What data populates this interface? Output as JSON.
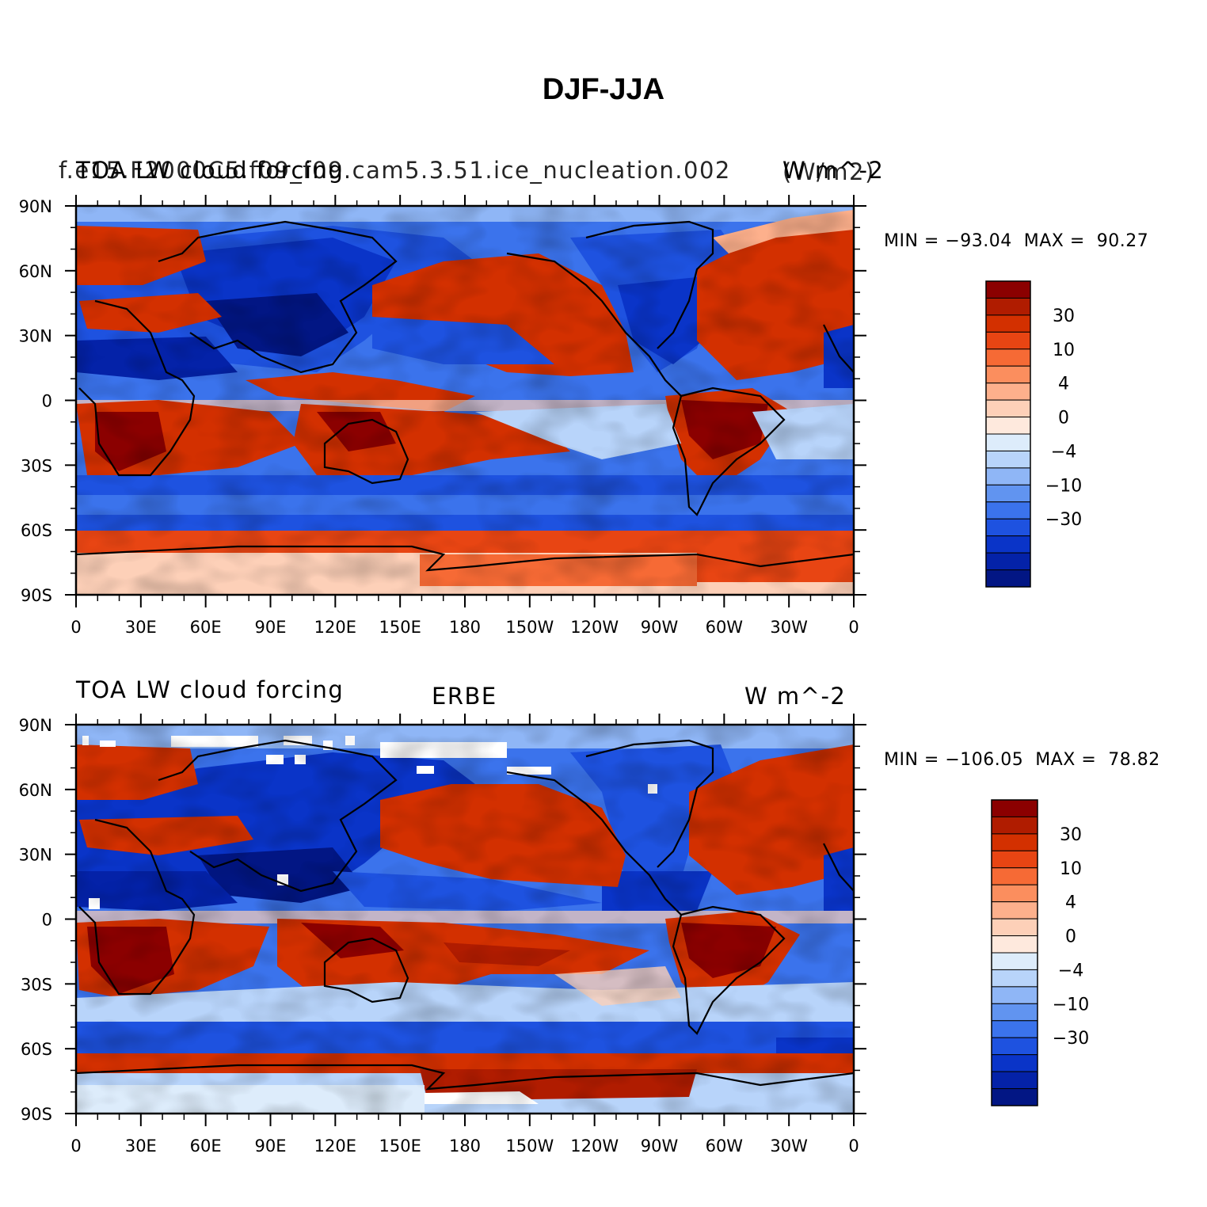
{
  "title": "DJF-JJA",
  "panels": [
    {
      "left_text": "TOA LW cloud forcing",
      "left_text_overlap": "f.e15.F2000C5.f09_f09.cam5.3.51.ice_nucleation.002",
      "center_text": "",
      "right_text": "W m^-2",
      "right_text_overlap": "(W/m2)",
      "min_max": "MIN = −93.04  MAX =  90.27"
    },
    {
      "left_text": "TOA LW cloud forcing",
      "left_text_overlap": "",
      "center_text": "ERBE",
      "right_text": "W m^-2",
      "right_text_overlap": "",
      "min_max": "MIN = −106.05  MAX =  78.82"
    }
  ],
  "axes": {
    "lat_labels": [
      "90N",
      "60N",
      "30N",
      "0",
      "30S",
      "60S",
      "90S"
    ],
    "lon_labels": [
      "0",
      "30E",
      "60E",
      "90E",
      "120E",
      "150E",
      "180",
      "150W",
      "120W",
      "90W",
      "60W",
      "30W",
      "0"
    ]
  },
  "colorbar": {
    "labels": [
      "30",
      "10",
      "4",
      "0",
      "−4",
      "−10",
      "−30"
    ],
    "colors": [
      "#8b0000",
      "#b01c00",
      "#d33000",
      "#e84513",
      "#f66a35",
      "#fb8e5e",
      "#fdb08c",
      "#fdd0b8",
      "#fee9dd",
      "#ddecfb",
      "#b8d4fa",
      "#8fb6f6",
      "#6194f0",
      "#3b73ec",
      "#1e52e0",
      "#0a34c8",
      "#0422a8",
      "#021684"
    ]
  }
}
